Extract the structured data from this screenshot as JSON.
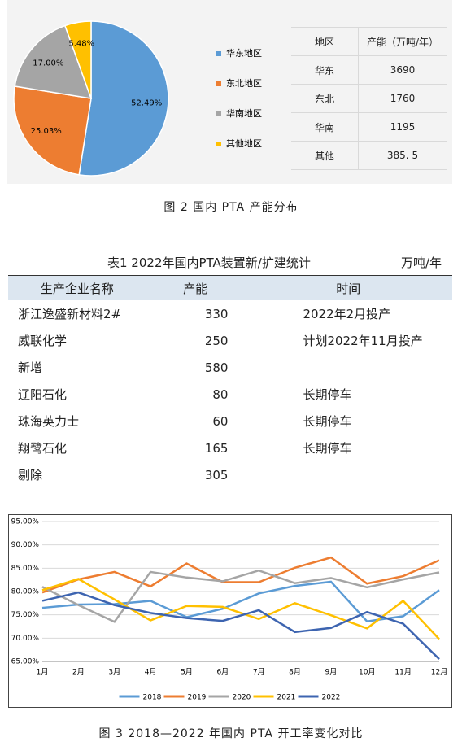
{
  "chart_data": [
    {
      "type": "pie",
      "categories": [
        "华东地区",
        "东北地区",
        "华南地区",
        "其他地区"
      ],
      "values": [
        52.49,
        25.03,
        17.0,
        5.48
      ],
      "value_labels": [
        "52.49%",
        "25.03%",
        "17.00%",
        "5.48%"
      ],
      "colors": [
        "#5b9bd5",
        "#ed7d31",
        "#a5a5a5",
        "#ffc000"
      ],
      "legend": "right"
    },
    {
      "type": "line",
      "categories": [
        "1月",
        "2月",
        "3月",
        "4月",
        "5月",
        "6月",
        "7月",
        "8月",
        "9月",
        "10月",
        "11月",
        "12月"
      ],
      "ylim": [
        65,
        95
      ],
      "yticks": [
        {
          "value": 65,
          "label": "65.00%"
        },
        {
          "value": 70,
          "label": "70.00%"
        },
        {
          "value": 75,
          "label": "75.00%"
        },
        {
          "value": 80,
          "label": "80.00%"
        },
        {
          "value": 85,
          "label": "85.00%"
        },
        {
          "value": 90,
          "label": "90.00%"
        },
        {
          "value": 95,
          "label": "95.00%"
        }
      ],
      "grid": true,
      "legend": "bottom",
      "series": [
        {
          "name": "2018",
          "color": "#5b9bd5",
          "values": [
            76.5,
            77.2,
            77.3,
            78.0,
            74.5,
            76.3,
            79.6,
            81.2,
            82.1,
            73.6,
            74.7,
            80.3
          ]
        },
        {
          "name": "2019",
          "color": "#ed7d31",
          "values": [
            79.8,
            82.6,
            84.2,
            81.1,
            86.0,
            82.0,
            82.0,
            85.1,
            87.3,
            81.7,
            83.3,
            86.7
          ]
        },
        {
          "name": "2020",
          "color": "#a5a5a5",
          "values": [
            81.0,
            77.1,
            73.5,
            84.2,
            83.0,
            82.2,
            84.5,
            81.8,
            82.9,
            80.9,
            82.6,
            84.1
          ]
        },
        {
          "name": "2021",
          "color": "#ffc000",
          "values": [
            80.3,
            82.7,
            78.3,
            73.8,
            76.9,
            76.7,
            74.1,
            77.5,
            74.9,
            72.1,
            78.0,
            69.8
          ]
        },
        {
          "name": "2022",
          "color": "#3d64b0",
          "values": [
            78.0,
            79.8,
            77.1,
            75.4,
            74.3,
            73.7,
            76.0,
            71.3,
            72.2,
            75.6,
            73.1,
            65.5
          ]
        }
      ]
    }
  ],
  "figure2_table": {
    "header": [
      "地区",
      "产能（万吨/年）"
    ],
    "rows": [
      [
        "华东",
        "3690"
      ],
      [
        "东北",
        "1760"
      ],
      [
        "华南",
        "1195"
      ],
      [
        "其他",
        "385. 5"
      ]
    ]
  },
  "figure2_caption": "图 2  国内 PTA 产能分布",
  "table1": {
    "title": "表1  2022年国内PTA装置新/扩建统计",
    "unit": "万吨/年",
    "header": [
      "生产企业名称",
      "产能",
      "时间"
    ],
    "rows": [
      [
        "浙江逸盛新材料2#",
        "330",
        "2022年2月投产"
      ],
      [
        "威联化学",
        "250",
        "计划2022年11月投产"
      ],
      [
        "新增",
        "580",
        null
      ],
      [
        "辽阳石化",
        "80",
        "长期停车"
      ],
      [
        "珠海英力士",
        "60",
        "长期停车"
      ],
      [
        "翔鹭石化",
        "165",
        "长期停车"
      ],
      [
        "剔除",
        "305",
        null
      ]
    ]
  },
  "figure3_caption": "图 3  2018—2022 年国内 PTA 开工率变化对比"
}
